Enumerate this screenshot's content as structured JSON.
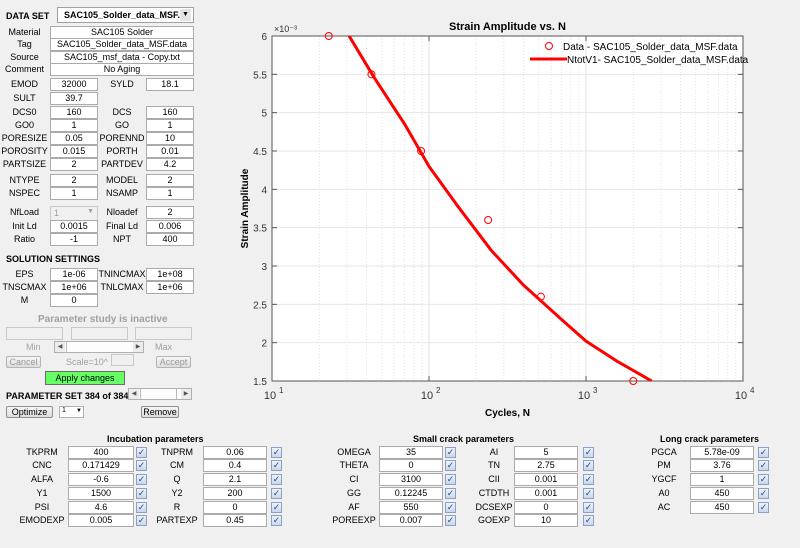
{
  "dataset": {
    "label": "DATA SET",
    "selected": "SAC105_Solder_data_MSF....",
    "fields": [
      {
        "label": "Material",
        "value": "SAC105 Solder"
      },
      {
        "label": "Tag",
        "value": "SAC105_Solder_data_MSF.data"
      },
      {
        "label": "Source",
        "value": "SAC105_msf_data - Copy.txt"
      },
      {
        "label": "Comment",
        "value": "No Aging"
      }
    ]
  },
  "params": {
    "EMOD": {
      "label": "EMOD",
      "value": "32000"
    },
    "SYLD": {
      "label": "SYLD",
      "value": "18.1"
    },
    "SULT": {
      "label": "SULT",
      "value": "39.7"
    },
    "DCS0": {
      "label": "DCS0",
      "value": "160"
    },
    "DCS": {
      "label": "DCS",
      "value": "160"
    },
    "GO0": {
      "label": "GO0",
      "value": "1"
    },
    "GO": {
      "label": "GO",
      "value": "1"
    },
    "PORESIZE": {
      "label": "PORESIZE",
      "value": "0.05"
    },
    "PORENND": {
      "label": "PORENND",
      "value": "10"
    },
    "POROSITY": {
      "label": "POROSITY",
      "value": "0.015"
    },
    "PORTH": {
      "label": "PORTH",
      "value": "0.01"
    },
    "PARTSIZE": {
      "label": "PARTSIZE",
      "value": "2"
    },
    "PARTDEV": {
      "label": "PARTDEV",
      "value": "4.2"
    },
    "NTYPE": {
      "label": "NTYPE",
      "value": "2"
    },
    "MODEL": {
      "label": "MODEL",
      "value": "2"
    },
    "NSPEC": {
      "label": "NSPEC",
      "value": "1"
    },
    "NSAMP": {
      "label": "NSAMP",
      "value": "1"
    },
    "NfLoad": {
      "label": "NfLoad",
      "value": "1"
    },
    "Nloadef": {
      "label": "Nloadef",
      "value": "2"
    },
    "InitLd": {
      "label": "Init Ld",
      "value": "0.0015"
    },
    "FinalLd": {
      "label": "Final Ld",
      "value": "0.006"
    },
    "Ratio": {
      "label": "Ratio",
      "value": "-1"
    },
    "NPT": {
      "label": "NPT",
      "value": "400"
    }
  },
  "solution": {
    "title": "SOLUTION SETTINGS",
    "EPS": {
      "label": "EPS",
      "value": "1e-06"
    },
    "TNINCMAX": {
      "label": "TNINCMAX",
      "value": "1e+08"
    },
    "TNSCMAX": {
      "label": "TNSCMAX",
      "value": "1e+06"
    },
    "TNLCMAX": {
      "label": "TNLCMAX",
      "value": "1e+06"
    },
    "M": {
      "label": "M",
      "value": "0"
    }
  },
  "study": {
    "status": "Parameter study is inactive",
    "min_label": "Min",
    "max_label": "Max",
    "cancel": "Cancel",
    "scale_label": "Scale=10^",
    "accept": "Accept",
    "apply": "Apply changes",
    "apply_color": "#66ff66"
  },
  "paramset": {
    "label": "PARAMETER SET 384 of 384",
    "optimize": "Optimize",
    "optimize_select": "1",
    "remove": "Remove"
  },
  "incubation": {
    "title": "Incubation parameters",
    "left": [
      {
        "label": "TKPRM",
        "value": "400",
        "checked": true
      },
      {
        "label": "CNC",
        "value": "0.171429",
        "checked": true
      },
      {
        "label": "ALFA",
        "value": "-0.6",
        "checked": true
      },
      {
        "label": "Y1",
        "value": "1500",
        "checked": true
      },
      {
        "label": "PSI",
        "value": "4.6",
        "checked": true
      },
      {
        "label": "EMODEXP",
        "value": "0.005",
        "checked": true
      }
    ],
    "right": [
      {
        "label": "TNPRM",
        "value": "0.06",
        "checked": true
      },
      {
        "label": "CM",
        "value": "0.4",
        "checked": true
      },
      {
        "label": "Q",
        "value": "2.1",
        "checked": true
      },
      {
        "label": "Y2",
        "value": "200",
        "checked": true
      },
      {
        "label": "R",
        "value": "0",
        "checked": true
      },
      {
        "label": "PARTEXP",
        "value": "0.45",
        "checked": true
      }
    ]
  },
  "smallcrack": {
    "title": "Small crack parameters",
    "left": [
      {
        "label": "OMEGA",
        "value": "35",
        "checked": true
      },
      {
        "label": "THETA",
        "value": "0",
        "checked": true
      },
      {
        "label": "CI",
        "value": "3100",
        "checked": true
      },
      {
        "label": "GG",
        "value": "0.12245",
        "checked": true
      },
      {
        "label": "AF",
        "value": "550",
        "checked": true
      },
      {
        "label": "POREEXP",
        "value": "0.007",
        "checked": true
      }
    ],
    "right": [
      {
        "label": "AI",
        "value": "5",
        "checked": true
      },
      {
        "label": "TN",
        "value": "2.75",
        "checked": true
      },
      {
        "label": "CII",
        "value": "0.001",
        "checked": true
      },
      {
        "label": "CTDTH",
        "value": "0.001",
        "checked": true
      },
      {
        "label": "DCSEXP",
        "value": "0",
        "checked": true
      },
      {
        "label": "GOEXP",
        "value": "10",
        "checked": true
      }
    ]
  },
  "longcrack": {
    "title": "Long crack parameters",
    "items": [
      {
        "label": "PGCA",
        "value": "5.78e-09",
        "checked": true
      },
      {
        "label": "PM",
        "value": "3.76",
        "checked": true
      },
      {
        "label": "YGCF",
        "value": "1",
        "checked": true
      },
      {
        "label": "A0",
        "value": "450",
        "checked": true
      },
      {
        "label": "AC",
        "value": "450",
        "checked": true
      }
    ]
  },
  "check_glyph": "✓",
  "chart_data": {
    "type": "scatter",
    "title": "Strain Amplitude vs. N",
    "xlabel": "Cycles, N",
    "ylabel": "Strain Amplitude",
    "y_exponent_label": "×10⁻³",
    "xscale": "log",
    "xlim": [
      10,
      10000
    ],
    "ylim": [
      1.5,
      6
    ],
    "y_multiplier": 0.001,
    "xticks": [
      "10^1",
      "10^2",
      "10^3",
      "10^4"
    ],
    "yticks": [
      "1.5",
      "2",
      "2.5",
      "3",
      "3.5",
      "4",
      "4.5",
      "5",
      "5.5",
      "6"
    ],
    "grid": true,
    "legend_position": "upper right",
    "series": [
      {
        "name": "Data -  SAC105_Solder_data_MSF.data",
        "kind": "markers",
        "marker": "circle",
        "color": "#ff0000",
        "x": [
          23,
          43,
          89,
          238,
          516,
          2000
        ],
        "y": [
          6.0,
          5.5,
          4.5,
          3.6,
          2.6,
          1.5
        ]
      },
      {
        "name": "NtotV1-  SAC105_Solder_data_MSF.data",
        "kind": "line",
        "color": "#ff0000",
        "x": [
          31,
          45,
          70,
          100,
          150,
          250,
          400,
          700,
          1000,
          1600,
          2620
        ],
        "y": [
          6.0,
          5.45,
          4.85,
          4.3,
          3.8,
          3.2,
          2.75,
          2.3,
          2.02,
          1.75,
          1.5
        ]
      }
    ]
  }
}
